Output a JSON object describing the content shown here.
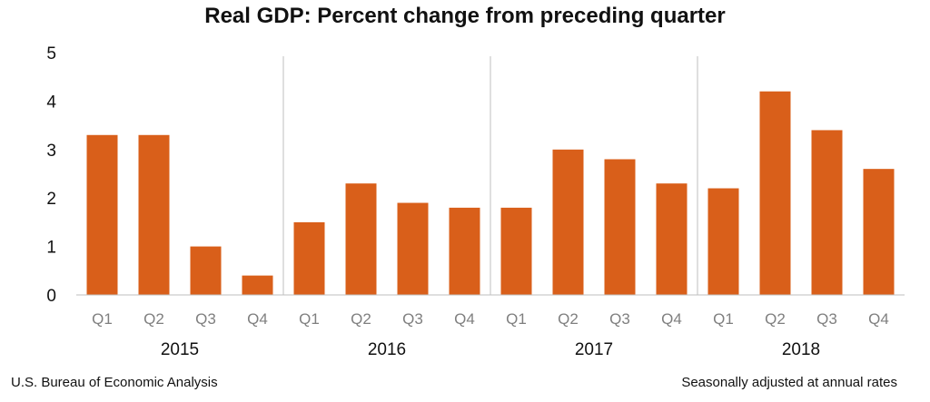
{
  "title": "Real GDP:  Percent change from preceding quarter",
  "source": "U.S. Bureau of Economic Analysis",
  "note": "Seasonally adjusted at annual rates",
  "colors": {
    "bar": "#D95F1A",
    "axis": "#bfbfbf",
    "tick_text": "#7f7f7f",
    "text": "#111111"
  },
  "chart_data": {
    "type": "bar",
    "title": "Real GDP:  Percent change from preceding quarter",
    "categories": [
      "Q1",
      "Q2",
      "Q3",
      "Q4",
      "Q1",
      "Q2",
      "Q3",
      "Q4",
      "Q1",
      "Q2",
      "Q3",
      "Q4",
      "Q1",
      "Q2",
      "Q3",
      "Q4"
    ],
    "groups": [
      "2015",
      "2016",
      "2017",
      "2018"
    ],
    "values": [
      3.3,
      3.3,
      1.0,
      0.4,
      1.5,
      2.3,
      1.9,
      1.8,
      1.8,
      3.0,
      2.8,
      2.3,
      2.2,
      4.2,
      3.4,
      2.6
    ],
    "ylim": [
      0,
      5
    ],
    "yticks": [
      "0",
      "1",
      "2",
      "3",
      "4",
      "5"
    ],
    "xlabel": "",
    "ylabel": "",
    "grid": false
  }
}
